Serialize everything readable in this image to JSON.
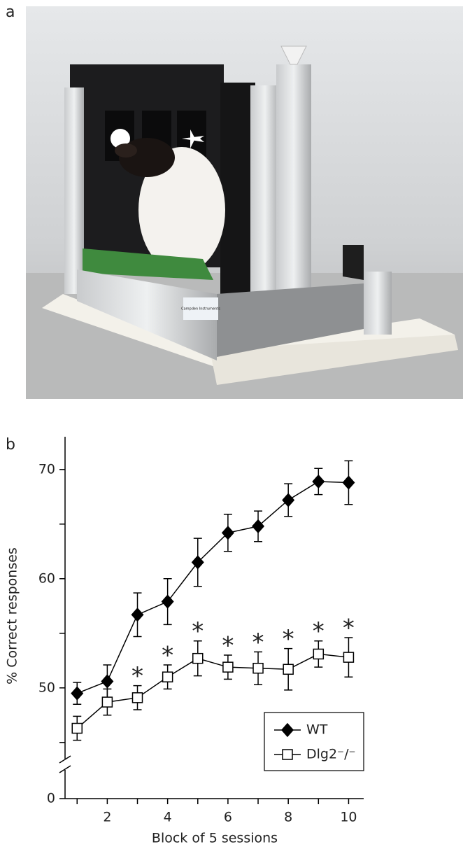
{
  "photo": {
    "label": "a",
    "sign": "Campden Instruments"
  },
  "chart_data": {
    "type": "line",
    "panel_label": "b",
    "xlabel": "Block of 5 sessions",
    "ylabel": "% Correct responses",
    "xlim": [
      0.6,
      10.5
    ],
    "xticks": [
      2,
      4,
      6,
      8,
      10
    ],
    "minor_xticks": [
      1,
      3,
      5,
      7,
      9
    ],
    "ylim": [
      43,
      73
    ],
    "yticks": [
      0,
      50,
      60,
      70
    ],
    "minor_yticks": [
      45,
      55,
      65
    ],
    "axis_break": true,
    "x": [
      1,
      2,
      3,
      4,
      5,
      6,
      7,
      8,
      9,
      10
    ],
    "series": [
      {
        "name": "WT",
        "color": "#000000",
        "marker": "diamond",
        "values": [
          49.5,
          50.6,
          56.7,
          57.9,
          61.5,
          64.2,
          64.8,
          67.2,
          68.9,
          68.8
        ],
        "errors": [
          1.0,
          1.5,
          2.0,
          2.1,
          2.2,
          1.7,
          1.4,
          1.5,
          1.2,
          2.0
        ]
      },
      {
        "name": "Dlg2⁻/⁻",
        "color": "#000000",
        "marker": "open-square",
        "values": [
          46.3,
          48.7,
          49.1,
          51.0,
          52.7,
          51.9,
          51.8,
          51.7,
          53.1,
          52.8
        ],
        "errors": [
          1.1,
          1.2,
          1.1,
          1.1,
          1.6,
          1.1,
          1.5,
          1.9,
          1.2,
          1.8
        ]
      }
    ],
    "annotations": [
      {
        "x": 3,
        "text": "*"
      },
      {
        "x": 4,
        "text": "*"
      },
      {
        "x": 5,
        "text": "*"
      },
      {
        "x": 6,
        "text": "*"
      },
      {
        "x": 7,
        "text": "*"
      },
      {
        "x": 8,
        "text": "*"
      },
      {
        "x": 9,
        "text": "*"
      },
      {
        "x": 10,
        "text": "*"
      }
    ],
    "legend": "lower right"
  }
}
